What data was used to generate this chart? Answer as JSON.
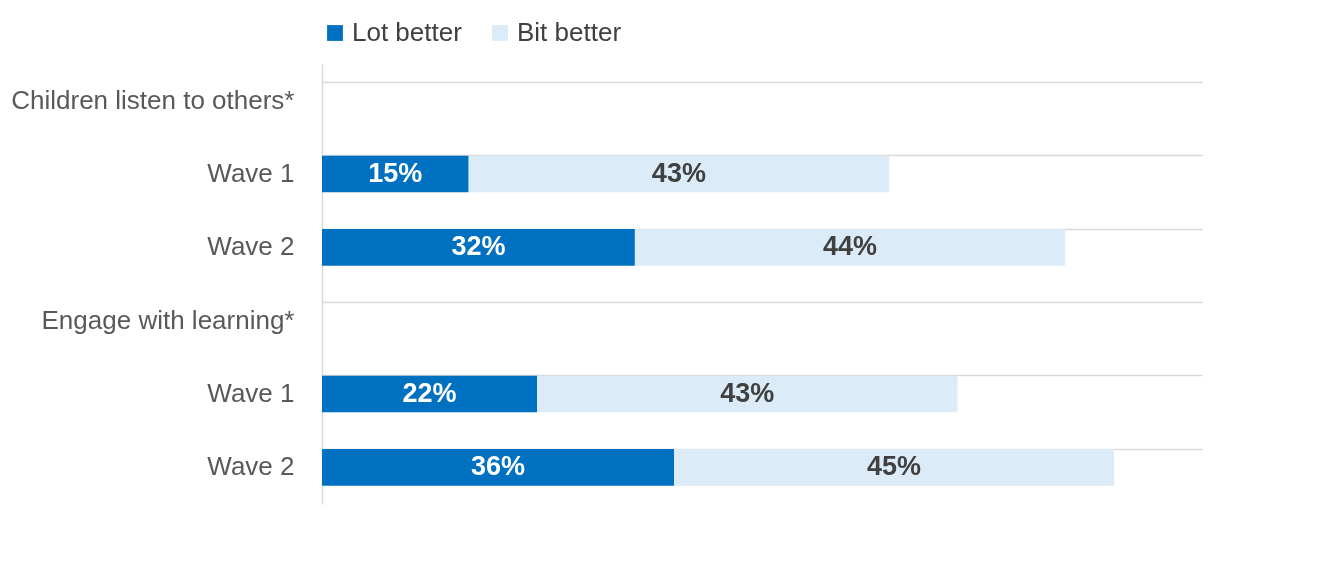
{
  "chart_data": {
    "type": "bar",
    "orientation": "horizontal",
    "stacked": true,
    "tick_labels": "y",
    "grid": "y",
    "legend": "top",
    "categories": [
      "Children listen to others*",
      "Wave 1",
      "Wave 2",
      "Engage with learning*",
      "Wave 1",
      "Wave 2"
    ],
    "series": [
      {
        "name": "Lot better",
        "color": "#0070c0",
        "values": [
          null,
          15,
          32,
          null,
          22,
          36
        ],
        "value_labels": [
          null,
          "15%",
          "32%",
          null,
          "22%",
          "36%"
        ]
      },
      {
        "name": "Bit better",
        "color": "#dbecf8",
        "values": [
          null,
          43,
          44,
          null,
          43,
          45
        ],
        "value_labels": [
          null,
          "43%",
          "44%",
          null,
          "43%",
          "45%"
        ]
      }
    ]
  }
}
